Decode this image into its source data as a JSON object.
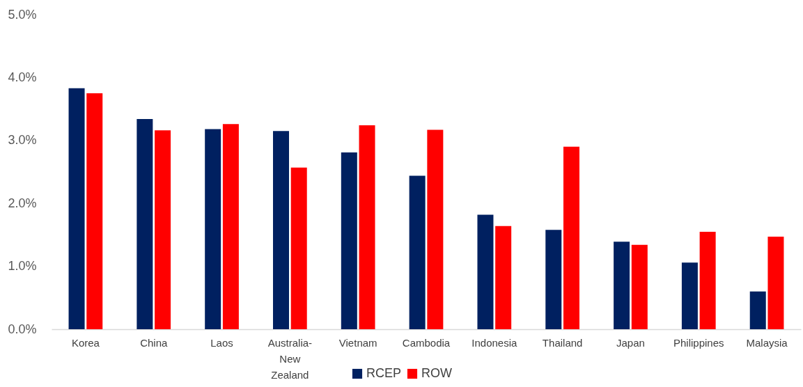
{
  "chart_data": {
    "type": "bar",
    "categories": [
      "Korea",
      "China",
      "Laos",
      "Australia-New Zealand",
      "Vietnam",
      "Cambodia",
      "Indonesia",
      "Thailand",
      "Japan",
      "Philippines",
      "Malaysia"
    ],
    "series": [
      {
        "name": "RCEP",
        "color": "#002060",
        "values": [
          3.83,
          3.34,
          3.18,
          3.15,
          2.81,
          2.44,
          1.82,
          1.58,
          1.39,
          1.06,
          0.6
        ]
      },
      {
        "name": "ROW",
        "color": "#ff0000",
        "values": [
          3.75,
          3.16,
          3.26,
          2.57,
          3.24,
          3.17,
          1.64,
          2.9,
          1.34,
          1.55,
          1.47
        ]
      }
    ],
    "ylim": [
      0,
      5
    ],
    "yticks": [
      {
        "value": 0,
        "label": "0.0%"
      },
      {
        "value": 1,
        "label": "1.0%"
      },
      {
        "value": 2,
        "label": "2.0%"
      },
      {
        "value": 3,
        "label": "3.0%"
      },
      {
        "value": 4,
        "label": "4.0%"
      },
      {
        "value": 5,
        "label": "5.0%"
      }
    ],
    "grid": false,
    "legend": "bottom"
  }
}
